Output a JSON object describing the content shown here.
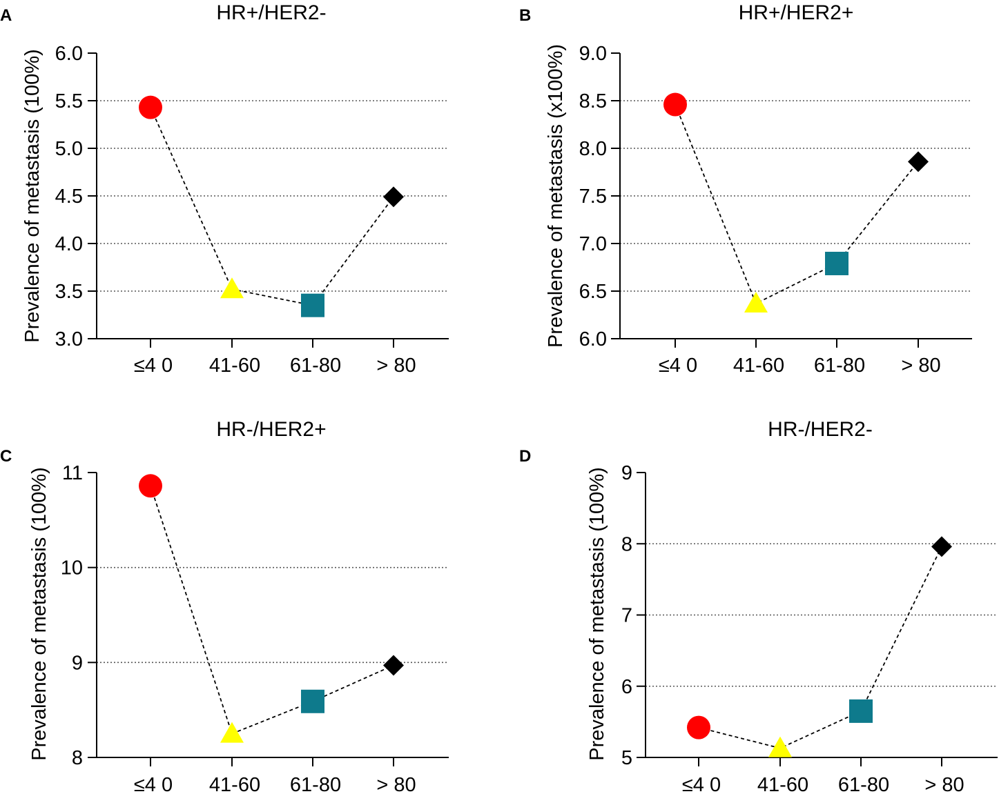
{
  "figure": {
    "colors": {
      "circle": "#ff0000",
      "triangle": "#ffff00",
      "square": "#0e7a8c",
      "diamond": "#000000",
      "grid": "#555555",
      "connector": "#000000"
    },
    "marker_shapes": [
      "circle",
      "triangle",
      "square",
      "diamond"
    ]
  },
  "chart_data": [
    {
      "letter": "A",
      "type": "line",
      "title": "HR+/HER2-",
      "ylabel": "Prevalence of metastasis (100%)",
      "xlabel": "",
      "categories": [
        "≤4 0",
        "41-60",
        "61-80",
        "> 80"
      ],
      "values": [
        5.43,
        3.52,
        3.35,
        4.49
      ],
      "ylim": [
        3.0,
        6.0
      ],
      "yticks": [
        3.0,
        3.5,
        4.0,
        4.5,
        5.0,
        5.5,
        6.0
      ],
      "ytick_labels": [
        "3.0",
        "3.5",
        "4.0",
        "4.5",
        "5.0",
        "5.5",
        "6.0"
      ],
      "gridlines": [
        3.5,
        4.0,
        4.5,
        5.0,
        5.5
      ],
      "grid": true
    },
    {
      "letter": "B",
      "type": "line",
      "title": "HR+/HER2+",
      "ylabel": "Prevalence of metastasis (x100%)",
      "xlabel": "",
      "categories": [
        "≤4 0",
        "41-60",
        "61-80",
        "> 80"
      ],
      "values": [
        8.46,
        6.37,
        6.79,
        7.86
      ],
      "ylim": [
        6.0,
        9.0
      ],
      "yticks": [
        6.0,
        6.5,
        7.0,
        7.5,
        8.0,
        8.5,
        9.0
      ],
      "ytick_labels": [
        "6.0",
        "6.5",
        "7.0",
        "7.5",
        "8.0",
        "8.5",
        "9.0"
      ],
      "gridlines": [
        6.5,
        7.0,
        7.5,
        8.0,
        8.5
      ],
      "grid": true
    },
    {
      "letter": "C",
      "type": "line",
      "title": "HR-/HER2+",
      "ylabel": "Prevalence of metastasis (100%)",
      "xlabel": "",
      "categories": [
        "≤4 0",
        "41-60",
        "61-80",
        "> 80"
      ],
      "values": [
        10.86,
        8.25,
        8.59,
        8.97
      ],
      "ylim": [
        8,
        11
      ],
      "yticks": [
        8,
        9,
        10,
        11
      ],
      "ytick_labels": [
        "8",
        "9",
        "10",
        "11"
      ],
      "gridlines": [
        9,
        10
      ],
      "grid": true
    },
    {
      "letter": "D",
      "type": "line",
      "title": "HR-/HER2-",
      "ylabel": "Prevalence of metastasis (100%)",
      "xlabel": "",
      "categories": [
        "≤4 0",
        "41-60",
        "61-80",
        "> 80"
      ],
      "values": [
        5.42,
        5.13,
        5.65,
        7.96
      ],
      "ylim": [
        5,
        9
      ],
      "yticks": [
        5,
        6,
        7,
        8,
        9
      ],
      "ytick_labels": [
        "5",
        "6",
        "7",
        "8",
        "9"
      ],
      "gridlines": [
        6,
        7,
        8
      ],
      "grid": true
    }
  ]
}
